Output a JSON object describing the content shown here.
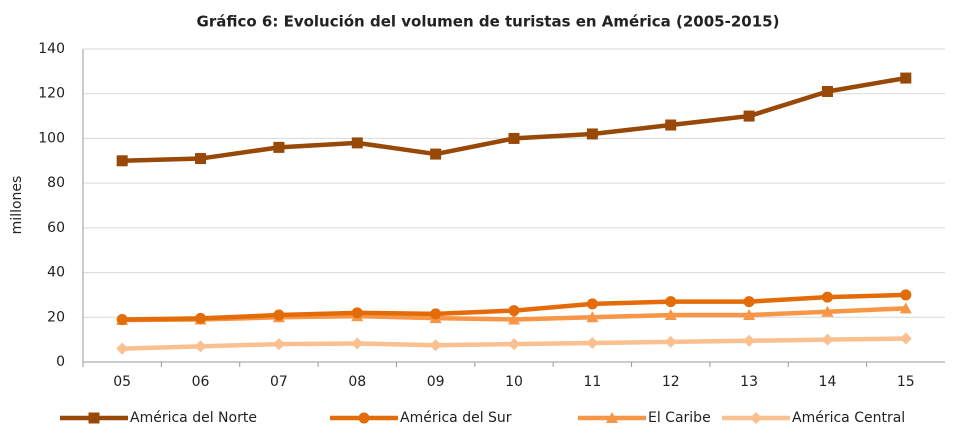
{
  "chart_data": {
    "type": "line",
    "title": "Gráfico 6: Evolución del volumen de turistas en América (2005-2015)",
    "y_label": "millones",
    "categories": [
      "05",
      "06",
      "07",
      "08",
      "09",
      "10",
      "11",
      "12",
      "13",
      "14",
      "15"
    ],
    "series": [
      {
        "name": "América del Norte",
        "color": "#984807",
        "marker": "square",
        "values": [
          90,
          91,
          96,
          98,
          93,
          100,
          102,
          106,
          110,
          121,
          127
        ]
      },
      {
        "name": "América del Sur",
        "color": "#e36c09",
        "marker": "circle",
        "values": [
          19,
          19.5,
          21,
          22,
          21.5,
          23,
          26,
          27,
          27,
          29,
          30
        ]
      },
      {
        "name": "El Caribe",
        "color": "#f79646",
        "marker": "triangle",
        "values": [
          18.8,
          19,
          20,
          20.5,
          19.6,
          19,
          20,
          21,
          21,
          22.5,
          24
        ]
      },
      {
        "name": "América Central",
        "color": "#fac090",
        "marker": "diamond",
        "values": [
          6,
          7,
          8,
          8.3,
          7.5,
          8,
          8.5,
          9,
          9.5,
          10,
          10.5
        ]
      }
    ],
    "ylim": [
      0,
      140
    ],
    "yticks": [
      0,
      20,
      40,
      60,
      80,
      100,
      120,
      140
    ],
    "grid": true,
    "legend": "bottom"
  }
}
